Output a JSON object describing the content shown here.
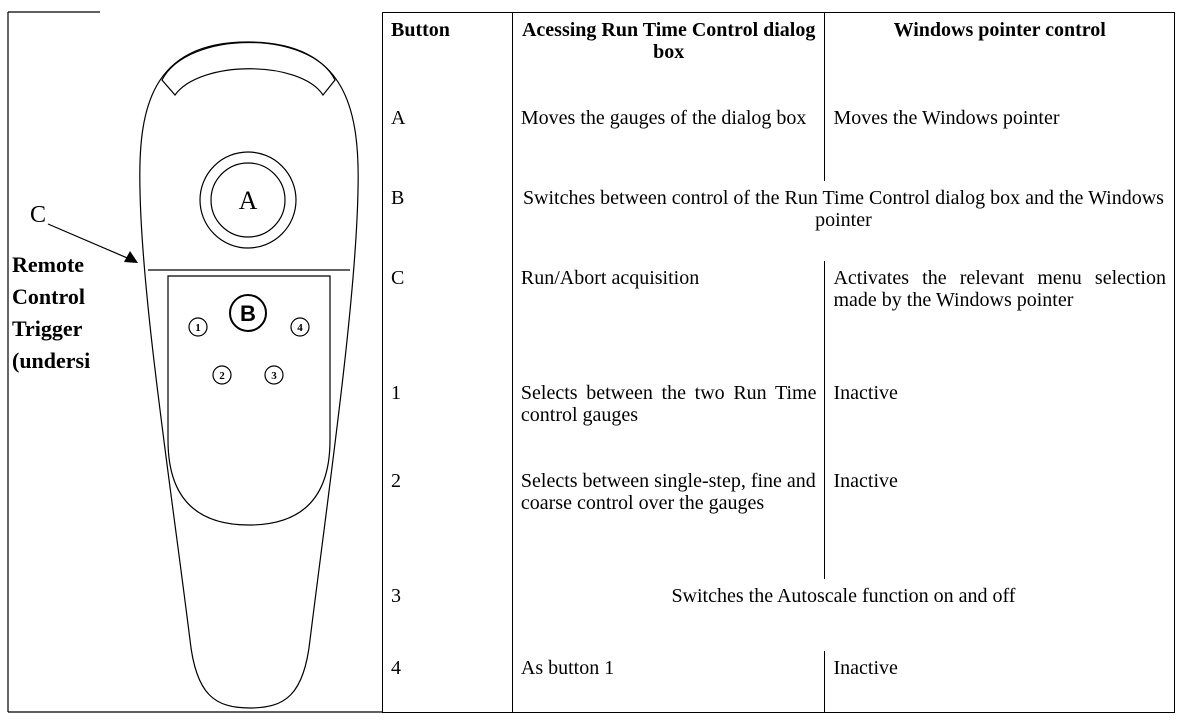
{
  "figure": {
    "label_a": "A",
    "label_b": "B",
    "label_c": "C",
    "buttons": [
      "1",
      "2",
      "3",
      "4"
    ],
    "trigger_label": [
      "Remote",
      "Control",
      "Trigger",
      "(undersi"
    ]
  },
  "table": {
    "headers": [
      "Button",
      "Acessing Run Time Control dialog box",
      "Windows pointer control"
    ],
    "rows": [
      [
        "A",
        "Moves the gauges of the dialog box",
        "Moves the Windows pointer"
      ],
      [
        "B",
        "Switches between control of the Run Time Control dialog box and the Windows pointer"
      ],
      [
        "C",
        "Run/Abort acquisition",
        "Activates the relevant menu selection made by the Windows pointer"
      ],
      [
        "1",
        "Selects between the two Run Time control gauges",
        "Inactive"
      ],
      [
        "2",
        "Selects between single-step, fine and coarse control over the gauges",
        "Inactive"
      ],
      [
        "3",
        "Switches the Autoscale function on and off"
      ],
      [
        "4",
        "As button 1",
        "Inactive"
      ]
    ]
  }
}
